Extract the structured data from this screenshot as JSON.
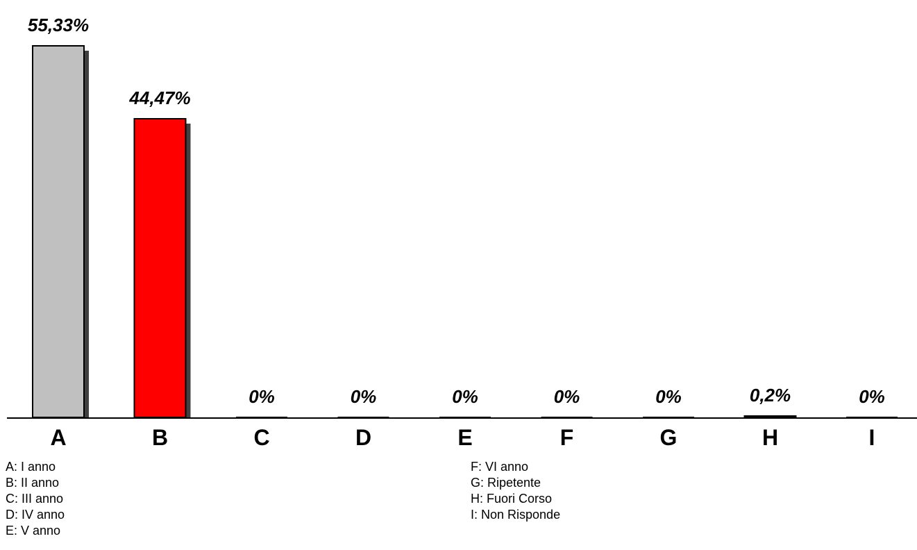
{
  "chart_data": {
    "type": "bar",
    "categories": [
      "A",
      "B",
      "C",
      "D",
      "E",
      "F",
      "G",
      "H",
      "I"
    ],
    "values": [
      55.33,
      44.47,
      0,
      0,
      0,
      0,
      0,
      0.2,
      0
    ],
    "value_labels": [
      "55,33%",
      "44,47%",
      "0%",
      "0%",
      "0%",
      "0%",
      "0%",
      "0,2%",
      "0%"
    ],
    "bar_colors": [
      "#c0c0c0",
      "#ff0000",
      "#c0c0c0",
      "#c0c0c0",
      "#c0c0c0",
      "#c0c0c0",
      "#c0c0c0",
      "#c0c0c0",
      "#c0c0c0"
    ],
    "shadow_color": "#404040",
    "ylim": [
      0,
      55.33
    ],
    "grid": false,
    "title": "",
    "xlabel": "",
    "ylabel": "",
    "legend_position": "bottom"
  },
  "legend": {
    "left": [
      "A: I anno",
      "B: II anno",
      "C: III anno",
      "D: IV anno",
      "E: V anno"
    ],
    "right": [
      "F: VI anno",
      "G: Ripetente",
      "H: Fuori Corso",
      "I: Non Risponde"
    ]
  }
}
